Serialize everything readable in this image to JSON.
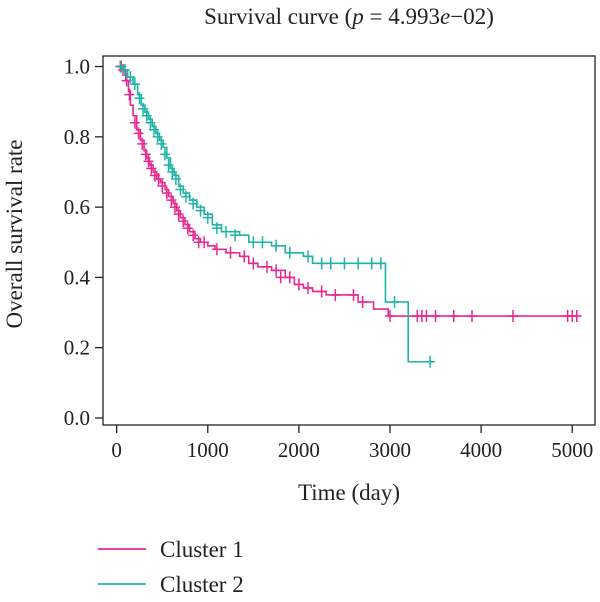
{
  "chart_data": {
    "type": "line",
    "subtype": "kaplan-meier survival curve",
    "title": {
      "prefix": "Survival curve (",
      "p_symbol": "p",
      "equals": " = 4.993",
      "e_symbol": "e",
      "suffix": "−02)"
    },
    "xlabel": "Time (day)",
    "ylabel": "Overall survival rate",
    "xlim": [
      -150,
      5250
    ],
    "ylim": [
      -0.02,
      1.03
    ],
    "x_ticks": [
      0,
      1000,
      2000,
      3000,
      4000,
      5000
    ],
    "y_ticks": [
      0.0,
      0.2,
      0.4,
      0.6,
      0.8,
      1.0
    ],
    "y_tick_labels": [
      "0.0",
      "0.2",
      "0.4",
      "0.6",
      "0.8",
      "1.0"
    ],
    "grid": false,
    "legend_position": "bottom-left, below plot",
    "series": [
      {
        "name": "Cluster 1",
        "color": "#e8288f",
        "steps": [
          [
            0,
            1.0
          ],
          [
            50,
            0.99
          ],
          [
            100,
            0.96
          ],
          [
            130,
            0.93
          ],
          [
            150,
            0.89
          ],
          [
            180,
            0.86
          ],
          [
            220,
            0.82
          ],
          [
            260,
            0.79
          ],
          [
            300,
            0.76
          ],
          [
            330,
            0.74
          ],
          [
            360,
            0.72
          ],
          [
            400,
            0.7
          ],
          [
            440,
            0.68
          ],
          [
            480,
            0.67
          ],
          [
            530,
            0.65
          ],
          [
            570,
            0.63
          ],
          [
            620,
            0.61
          ],
          [
            660,
            0.59
          ],
          [
            700,
            0.57
          ],
          [
            750,
            0.55
          ],
          [
            800,
            0.53
          ],
          [
            860,
            0.51
          ],
          [
            920,
            0.5
          ],
          [
            1000,
            0.49
          ],
          [
            1080,
            0.48
          ],
          [
            1200,
            0.47
          ],
          [
            1350,
            0.46
          ],
          [
            1450,
            0.44
          ],
          [
            1550,
            0.43
          ],
          [
            1700,
            0.42
          ],
          [
            1850,
            0.4
          ],
          [
            1950,
            0.38
          ],
          [
            2050,
            0.37
          ],
          [
            2150,
            0.36
          ],
          [
            2300,
            0.35
          ],
          [
            2650,
            0.33
          ],
          [
            2820,
            0.31
          ],
          [
            2980,
            0.29
          ],
          [
            5060,
            0.29
          ]
        ],
        "censored": [
          [
            40,
            1.0
          ],
          [
            70,
            0.99
          ],
          [
            110,
            0.96
          ],
          [
            140,
            0.92
          ],
          [
            200,
            0.84
          ],
          [
            240,
            0.81
          ],
          [
            280,
            0.78
          ],
          [
            320,
            0.75
          ],
          [
            350,
            0.73
          ],
          [
            380,
            0.71
          ],
          [
            420,
            0.69
          ],
          [
            460,
            0.68
          ],
          [
            500,
            0.66
          ],
          [
            550,
            0.64
          ],
          [
            600,
            0.62
          ],
          [
            640,
            0.6
          ],
          [
            680,
            0.58
          ],
          [
            730,
            0.56
          ],
          [
            780,
            0.54
          ],
          [
            840,
            0.52
          ],
          [
            900,
            0.5
          ],
          [
            960,
            0.5
          ],
          [
            1100,
            0.48
          ],
          [
            1250,
            0.47
          ],
          [
            1400,
            0.46
          ],
          [
            1500,
            0.44
          ],
          [
            1650,
            0.43
          ],
          [
            1750,
            0.42
          ],
          [
            1800,
            0.4
          ],
          [
            1900,
            0.4
          ],
          [
            2000,
            0.38
          ],
          [
            2100,
            0.37
          ],
          [
            2250,
            0.36
          ],
          [
            2400,
            0.35
          ],
          [
            2600,
            0.35
          ],
          [
            2700,
            0.33
          ],
          [
            3000,
            0.29
          ],
          [
            3300,
            0.29
          ],
          [
            3350,
            0.29
          ],
          [
            3400,
            0.29
          ],
          [
            3500,
            0.29
          ],
          [
            3700,
            0.29
          ],
          [
            3900,
            0.29
          ],
          [
            4350,
            0.29
          ],
          [
            4950,
            0.29
          ],
          [
            5000,
            0.29
          ],
          [
            5050,
            0.29
          ]
        ]
      },
      {
        "name": "Cluster 2",
        "color": "#1fb3a6",
        "steps": [
          [
            0,
            1.0
          ],
          [
            60,
            0.99
          ],
          [
            120,
            0.97
          ],
          [
            180,
            0.95
          ],
          [
            230,
            0.92
          ],
          [
            270,
            0.89
          ],
          [
            310,
            0.87
          ],
          [
            350,
            0.85
          ],
          [
            390,
            0.83
          ],
          [
            430,
            0.81
          ],
          [
            470,
            0.79
          ],
          [
            510,
            0.77
          ],
          [
            550,
            0.74
          ],
          [
            590,
            0.71
          ],
          [
            630,
            0.69
          ],
          [
            680,
            0.66
          ],
          [
            730,
            0.64
          ],
          [
            800,
            0.62
          ],
          [
            880,
            0.6
          ],
          [
            960,
            0.58
          ],
          [
            1050,
            0.55
          ],
          [
            1150,
            0.53
          ],
          [
            1350,
            0.52
          ],
          [
            1450,
            0.5
          ],
          [
            1700,
            0.49
          ],
          [
            1850,
            0.47
          ],
          [
            2050,
            0.46
          ],
          [
            2150,
            0.44
          ],
          [
            2950,
            0.33
          ],
          [
            3200,
            0.16
          ],
          [
            3440,
            0.16
          ]
        ],
        "censored": [
          [
            50,
            1.0
          ],
          [
            90,
            0.99
          ],
          [
            150,
            0.97
          ],
          [
            200,
            0.95
          ],
          [
            250,
            0.91
          ],
          [
            290,
            0.88
          ],
          [
            330,
            0.86
          ],
          [
            370,
            0.84
          ],
          [
            410,
            0.82
          ],
          [
            450,
            0.8
          ],
          [
            490,
            0.78
          ],
          [
            530,
            0.75
          ],
          [
            570,
            0.72
          ],
          [
            610,
            0.7
          ],
          [
            650,
            0.68
          ],
          [
            700,
            0.65
          ],
          [
            760,
            0.63
          ],
          [
            840,
            0.61
          ],
          [
            920,
            0.59
          ],
          [
            1000,
            0.57
          ],
          [
            1100,
            0.54
          ],
          [
            1200,
            0.53
          ],
          [
            1300,
            0.52
          ],
          [
            1500,
            0.5
          ],
          [
            1600,
            0.5
          ],
          [
            1750,
            0.49
          ],
          [
            1900,
            0.47
          ],
          [
            2100,
            0.46
          ],
          [
            2250,
            0.44
          ],
          [
            2350,
            0.44
          ],
          [
            2500,
            0.44
          ],
          [
            2650,
            0.44
          ],
          [
            2800,
            0.44
          ],
          [
            2900,
            0.44
          ],
          [
            3050,
            0.33
          ],
          [
            3440,
            0.16
          ]
        ]
      }
    ]
  }
}
